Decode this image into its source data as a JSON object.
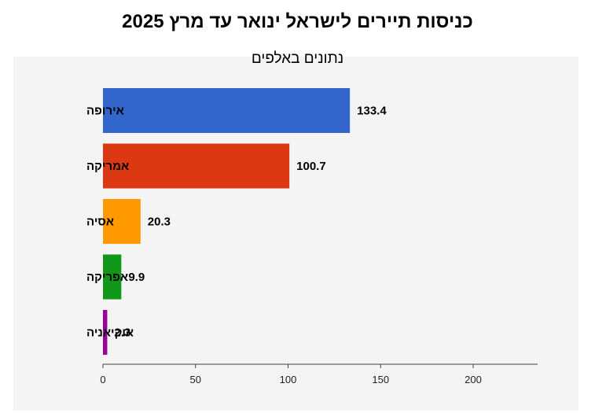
{
  "chart_data": {
    "type": "bar",
    "orientation": "horizontal",
    "title": "כניסות תיירים לישראל ינואר עד מרץ 2025",
    "subtitle": "נתונים באלפים",
    "categories": [
      "אירופה",
      "אמריקה",
      "אסיה",
      "אפריקה",
      "אוקיאניה"
    ],
    "values": [
      133.4,
      100.7,
      20.3,
      9.9,
      2.3
    ],
    "colors": [
      "#3366cc",
      "#dc3912",
      "#ff9900",
      "#109618",
      "#990099"
    ],
    "xticks": [
      0,
      50,
      100,
      150,
      200
    ],
    "xlim": [
      0,
      235
    ],
    "xlabel": "",
    "ylabel": "",
    "grid": false,
    "legend": "none"
  }
}
